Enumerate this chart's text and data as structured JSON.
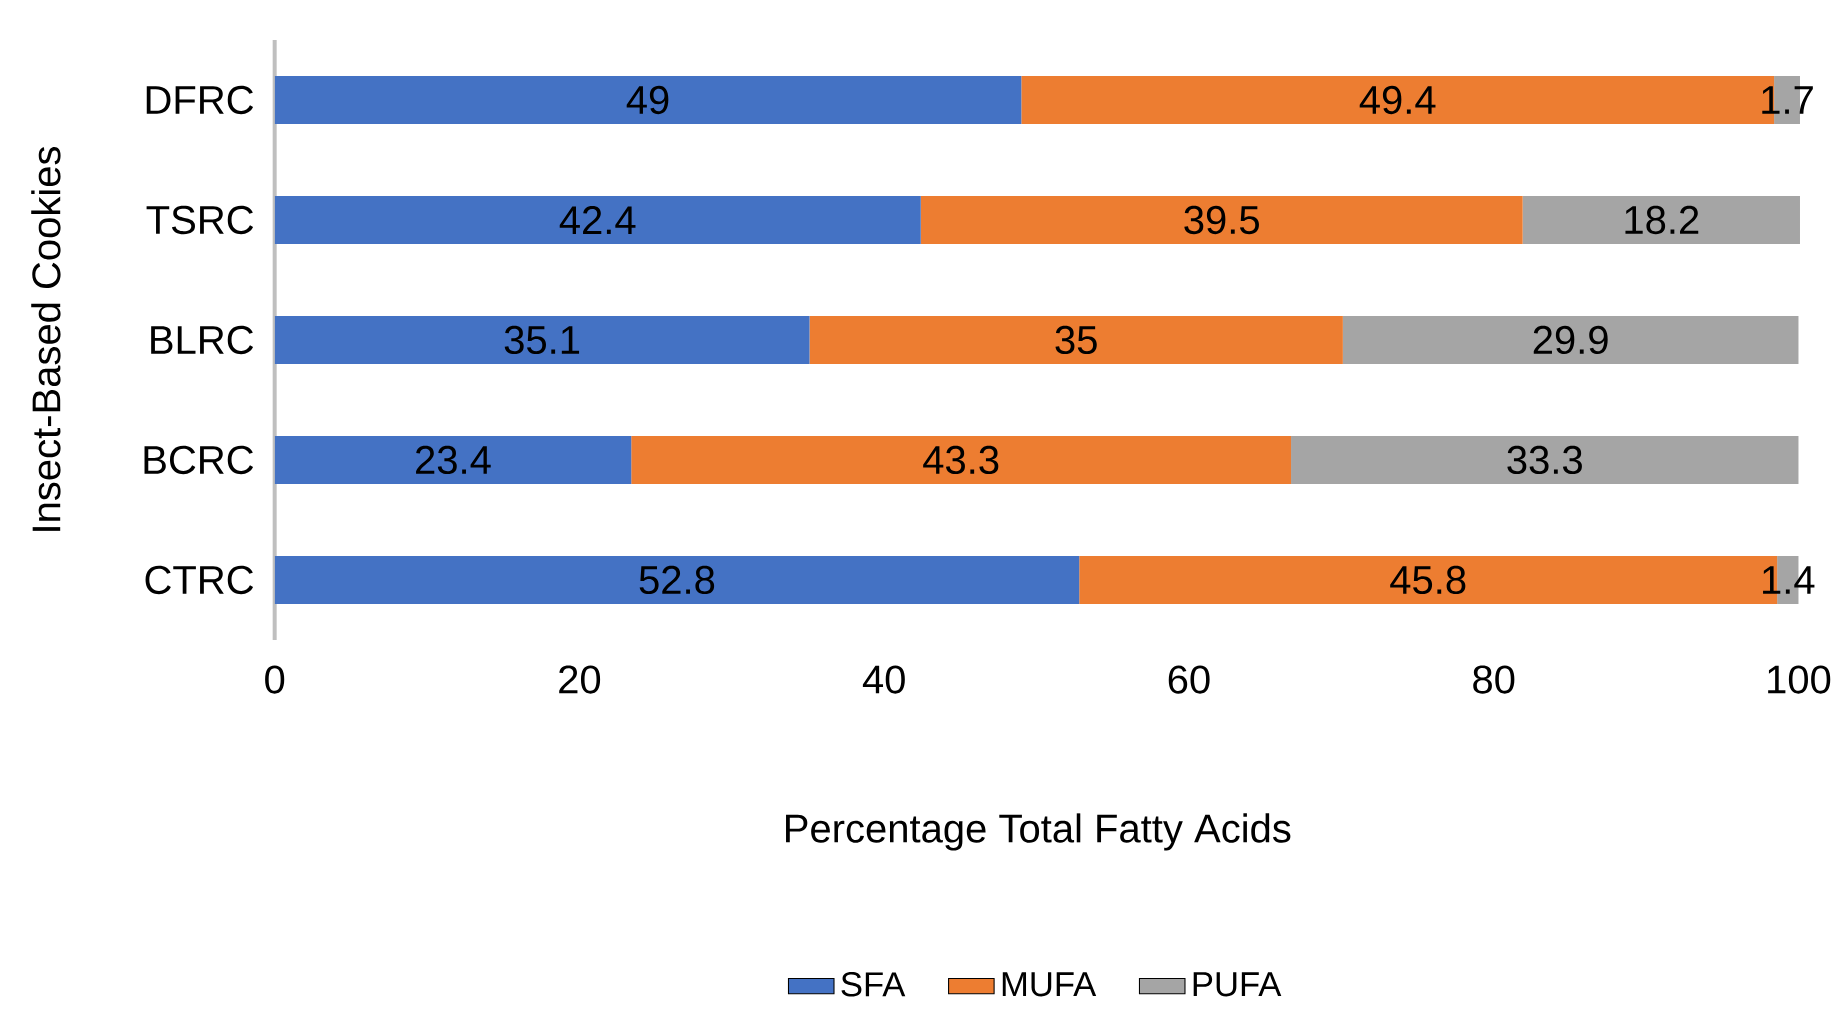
{
  "chart_data": {
    "type": "bar",
    "orientation": "horizontal",
    "stacked": true,
    "categories": [
      "DFRC",
      "TSRC",
      "BLRC",
      "BCRC",
      "CTRC"
    ],
    "series": [
      {
        "name": "SFA",
        "color": "#4472c4",
        "values": [
          49,
          42.4,
          35.1,
          23.4,
          52.8
        ]
      },
      {
        "name": "MUFA",
        "color": "#ed7d31",
        "values": [
          49.4,
          39.5,
          35,
          43.3,
          45.8
        ]
      },
      {
        "name": "PUFA",
        "color": "#a5a5a5",
        "values": [
          1.7,
          18.2,
          29.9,
          33.3,
          1.4
        ]
      }
    ],
    "xlabel": "Percentage Total Fatty Acids",
    "ylabel": "Insect-Based Cookies",
    "xlim": [
      0,
      100.1
    ],
    "xticks": [
      0,
      20,
      40,
      60,
      80,
      100
    ],
    "data_labels": true,
    "legend": "bottom",
    "grid": false
  }
}
